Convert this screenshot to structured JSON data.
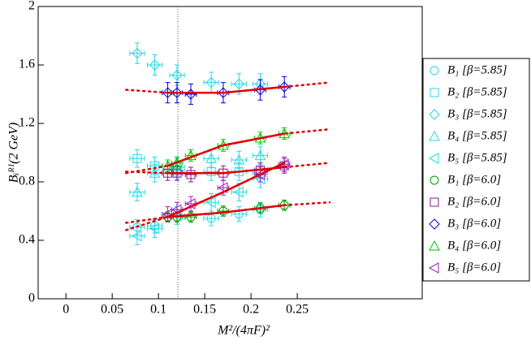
{
  "chart_data": {
    "type": "scatter",
    "x_label": "M²/(4πF)²",
    "y_label": "Bᵢᴿᴵ(2 GeV)",
    "xlim": [
      -0.03,
      0.385
    ],
    "ylim": [
      0,
      2
    ],
    "xticks": [
      0,
      0.05,
      {
        "value": 0.1,
        "label": "0.1"
      },
      0.15,
      {
        "value": 0.2,
        "label": "0.2"
      },
      0.25
    ],
    "yticks": [
      0,
      0.4,
      0.8,
      1.2,
      1.6,
      2
    ],
    "vline": 0.121,
    "series": [
      {
        "name": "B₁ [β=5.85]",
        "color": "#22d8e8",
        "marker": "circle",
        "x": [
          0.077,
          0.096,
          0.12,
          0.157,
          0.187,
          0.21
        ],
        "values": [
          0.49,
          0.5,
          0.56,
          0.55,
          0.58,
          0.61
        ],
        "xerr": 0.008,
        "yerr": 0.05
      },
      {
        "name": "B₂ [β=5.85]",
        "color": "#22d8e8",
        "marker": "square",
        "x": [
          0.077,
          0.096,
          0.12,
          0.157,
          0.187,
          0.21
        ],
        "values": [
          0.96,
          0.91,
          0.88,
          0.87,
          0.87,
          0.86
        ],
        "xerr": 0.008,
        "yerr": 0.06
      },
      {
        "name": "B₃ [β=5.85]",
        "color": "#22d8e8",
        "marker": "diamond",
        "x": [
          0.077,
          0.096,
          0.12,
          0.157,
          0.187,
          0.21
        ],
        "values": [
          1.68,
          1.6,
          1.53,
          1.48,
          1.47,
          1.47
        ],
        "xerr": 0.008,
        "yerr": 0.07
      },
      {
        "name": "B₄ [β=5.85]",
        "color": "#22d8e8",
        "marker": "triangle-up",
        "x": [
          0.077,
          0.096,
          0.12,
          0.157,
          0.187,
          0.21
        ],
        "values": [
          0.73,
          0.86,
          0.9,
          0.96,
          0.95,
          0.98
        ],
        "xerr": 0.008,
        "yerr": 0.06
      },
      {
        "name": "B₅ [β=5.85]",
        "color": "#22d8e8",
        "marker": "triangle-left",
        "x": [
          0.077,
          0.096,
          0.12,
          0.157,
          0.187,
          0.21
        ],
        "values": [
          0.43,
          0.48,
          0.57,
          0.66,
          0.73,
          0.82
        ],
        "xerr": 0.008,
        "yerr": 0.06
      },
      {
        "name": "B₁ [β=6.0]",
        "color": "#009900",
        "marker": "circle",
        "x": [
          0.11,
          0.12,
          0.135,
          0.17,
          0.21,
          0.236
        ],
        "values": [
          0.56,
          0.56,
          0.56,
          0.6,
          0.62,
          0.64
        ],
        "xerr": 0.006,
        "yerr": 0.035
      },
      {
        "name": "B₂ [β=6.0]",
        "color": "#8b1a8b",
        "marker": "square",
        "x": [
          0.11,
          0.12,
          0.135,
          0.17,
          0.21,
          0.236
        ],
        "values": [
          0.86,
          0.86,
          0.85,
          0.86,
          0.88,
          0.91
        ],
        "xerr": 0.006,
        "yerr": 0.05
      },
      {
        "name": "B₃ [β=6.0]",
        "color": "#0000dd",
        "marker": "diamond",
        "x": [
          0.11,
          0.12,
          0.135,
          0.17,
          0.21,
          0.236
        ],
        "values": [
          1.41,
          1.41,
          1.4,
          1.41,
          1.43,
          1.45
        ],
        "xerr": 0.006,
        "yerr": 0.07
      },
      {
        "name": "B₄ [β=6.0]",
        "color": "#00c000",
        "marker": "triangle-up",
        "x": [
          0.11,
          0.12,
          0.135,
          0.17,
          0.21,
          0.236
        ],
        "values": [
          0.91,
          0.93,
          0.98,
          1.05,
          1.1,
          1.13
        ],
        "xerr": 0.006,
        "yerr": 0.04
      },
      {
        "name": "B₅ [β=6.0]",
        "color": "#a020c0",
        "marker": "triangle-left",
        "x": [
          0.11,
          0.12,
          0.135,
          0.17,
          0.21,
          0.236
        ],
        "values": [
          0.58,
          0.61,
          0.65,
          0.76,
          0.85,
          0.92
        ],
        "xerr": 0.006,
        "yerr": 0.05
      }
    ],
    "fit_color": "#e00000",
    "fit_solid_range": [
      0.11,
      0.236
    ],
    "fits": [
      {
        "x": [
          0.065,
          0.11,
          0.17,
          0.236,
          0.285
        ],
        "values": [
          0.52,
          0.56,
          0.59,
          0.64,
          0.66
        ]
      },
      {
        "x": [
          0.065,
          0.11,
          0.17,
          0.236,
          0.285
        ],
        "values": [
          0.87,
          0.86,
          0.86,
          0.9,
          0.93
        ]
      },
      {
        "x": [
          0.065,
          0.11,
          0.17,
          0.236,
          0.285
        ],
        "values": [
          1.43,
          1.41,
          1.41,
          1.45,
          1.48
        ]
      },
      {
        "x": [
          0.065,
          0.11,
          0.17,
          0.236,
          0.285
        ],
        "values": [
          0.86,
          0.91,
          1.05,
          1.13,
          1.16
        ]
      },
      {
        "x": [
          0.065,
          0.11,
          0.17,
          0.236
        ],
        "values": [
          0.47,
          0.56,
          0.73,
          0.93
        ]
      }
    ]
  }
}
